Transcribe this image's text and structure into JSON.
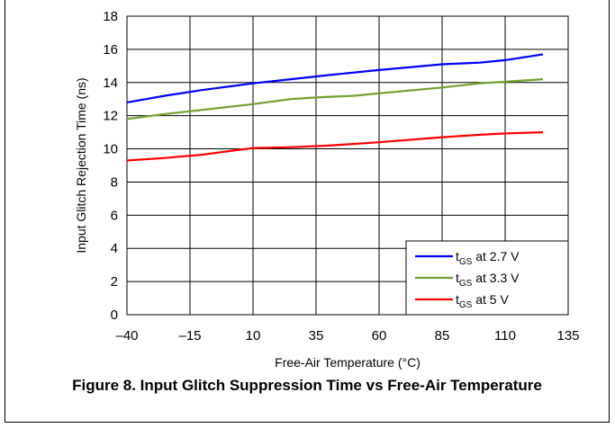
{
  "figure": {
    "caption": "Figure 8. Input Glitch Suppression Time vs Free-Air Temperature"
  },
  "chart_data": {
    "type": "line",
    "title": "",
    "xlabel": "Free-Air Temperature (°C)",
    "ylabel": "Input Glitch Rejection Time (ns)",
    "xlim": [
      -40,
      135
    ],
    "ylim": [
      0,
      18
    ],
    "xticks": [
      -40,
      -15,
      10,
      35,
      60,
      85,
      110,
      135
    ],
    "xtick_labels": [
      "–40",
      "–15",
      "10",
      "35",
      "60",
      "85",
      "110",
      "135"
    ],
    "yticks": [
      0,
      2,
      4,
      6,
      8,
      10,
      12,
      14,
      16,
      18
    ],
    "grid": true,
    "legend_position": "bottom-right",
    "series": [
      {
        "name": "tGS at 2.7 V",
        "legend_main": "t",
        "legend_sub": "GS",
        "legend_rest": " at 2.7 V",
        "color": "#0000ff",
        "x": [
          -40,
          -25,
          -10,
          10,
          25,
          40,
          60,
          85,
          100,
          110,
          125
        ],
        "y": [
          12.8,
          13.2,
          13.55,
          13.95,
          14.2,
          14.45,
          14.75,
          15.1,
          15.2,
          15.35,
          15.7
        ]
      },
      {
        "name": "tGS at 3.3 V",
        "legend_main": "t",
        "legend_sub": "GS",
        "legend_rest": " at 3.3 V",
        "color": "#70a030",
        "x": [
          -40,
          -25,
          -10,
          10,
          25,
          35,
          50,
          60,
          85,
          100,
          110,
          125
        ],
        "y": [
          11.8,
          12.1,
          12.35,
          12.7,
          13.0,
          13.1,
          13.2,
          13.35,
          13.7,
          13.95,
          14.05,
          14.2
        ]
      },
      {
        "name": "tGS at 5 V",
        "legend_main": "t",
        "legend_sub": "GS",
        "legend_rest": " at 5 V",
        "color": "#ff0000",
        "x": [
          -40,
          -25,
          -10,
          10,
          25,
          40,
          60,
          85,
          100,
          110,
          125
        ],
        "y": [
          9.3,
          9.45,
          9.65,
          10.05,
          10.1,
          10.2,
          10.4,
          10.7,
          10.85,
          10.93,
          11.0
        ]
      }
    ]
  }
}
